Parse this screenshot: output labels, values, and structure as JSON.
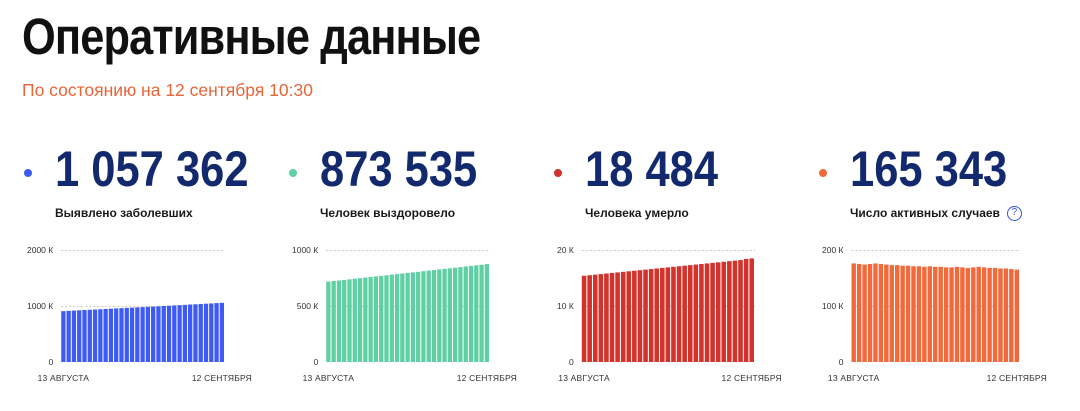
{
  "header": {
    "title": "Оперативные данные",
    "subtitle": "По состоянию на 12 сентября 10:30"
  },
  "colors": {
    "title": "#111111",
    "subtitle": "#e8653a",
    "value": "#13296e",
    "label": "#1a1a1a",
    "help_icon": "#3453d8",
    "grid": "#c9c9c9",
    "axis_text": "#333333"
  },
  "stats": [
    {
      "value": "1 057 362",
      "label": "Выявлено заболевших",
      "color": "#3d5bf4"
    },
    {
      "value": "873 535",
      "label": "Человек выздоровело",
      "color": "#5fcfa4"
    },
    {
      "value": "18 484",
      "label": "Человека умерло",
      "color": "#d0342c"
    },
    {
      "value": "165 343",
      "label": "Число активных случаев",
      "color": "#f06a3b",
      "icon": "question-circle-icon",
      "icon_glyph": "?"
    }
  ],
  "chart_data": [
    {
      "type": "bar",
      "values": [
        908,
        913,
        918,
        923,
        928,
        932,
        937,
        942,
        947,
        952,
        957,
        961,
        966,
        971,
        976,
        980,
        985,
        990,
        995,
        1000,
        1005,
        1010,
        1015,
        1020,
        1026,
        1031,
        1036,
        1041,
        1046,
        1052,
        1057
      ],
      "ylim": [
        0,
        2000
      ],
      "y_ticks": [
        0,
        1000,
        2000
      ],
      "y_tick_labels": [
        "0",
        "1000 К",
        "2000 К"
      ],
      "x_tick_labels": [
        "13 АВГУСТА",
        "12 СЕНТЯБРЯ"
      ],
      "color": "#3d5bf4",
      "grid": true
    },
    {
      "type": "bar",
      "values": [
        718,
        723,
        728,
        733,
        738,
        744,
        749,
        754,
        759,
        764,
        769,
        774,
        780,
        785,
        790,
        795,
        800,
        805,
        811,
        816,
        821,
        827,
        832,
        837,
        842,
        847,
        853,
        858,
        863,
        868,
        874
      ],
      "ylim": [
        0,
        1000
      ],
      "y_ticks": [
        0,
        500,
        1000
      ],
      "y_tick_labels": [
        "0",
        "500 К",
        "1000 К"
      ],
      "x_tick_labels": [
        "13 АВГУСТА",
        "12 СЕНТЯБРЯ"
      ],
      "color": "#5fcfa4",
      "grid": true
    },
    {
      "type": "bar",
      "values": [
        15.4,
        15.5,
        15.6,
        15.7,
        15.8,
        15.9,
        16.0,
        16.1,
        16.2,
        16.3,
        16.4,
        16.5,
        16.6,
        16.7,
        16.8,
        16.9,
        17.0,
        17.1,
        17.2,
        17.3,
        17.4,
        17.5,
        17.6,
        17.7,
        17.8,
        17.9,
        18.0,
        18.1,
        18.2,
        18.4,
        18.5
      ],
      "ylim": [
        0,
        20
      ],
      "y_ticks": [
        0,
        10,
        20
      ],
      "y_tick_labels": [
        "0",
        "10 К",
        "20 К"
      ],
      "x_tick_labels": [
        "13 АВГУСТА",
        "12 СЕНТЯБРЯ"
      ],
      "color": "#d0342c",
      "grid": true
    },
    {
      "type": "bar",
      "values": [
        176,
        175,
        174,
        175,
        176,
        175,
        174,
        173,
        173,
        172,
        172,
        171,
        171,
        170,
        171,
        170,
        170,
        169,
        169,
        170,
        169,
        168,
        169,
        170,
        169,
        168,
        168,
        167,
        167,
        166,
        165
      ],
      "ylim": [
        0,
        200
      ],
      "y_ticks": [
        0,
        100,
        200
      ],
      "y_tick_labels": [
        "0",
        "100 К",
        "200 К"
      ],
      "x_tick_labels": [
        "13 АВГУСТА",
        "12 СЕНТЯБРЯ"
      ],
      "color": "#f06a3b",
      "grid": true
    }
  ]
}
